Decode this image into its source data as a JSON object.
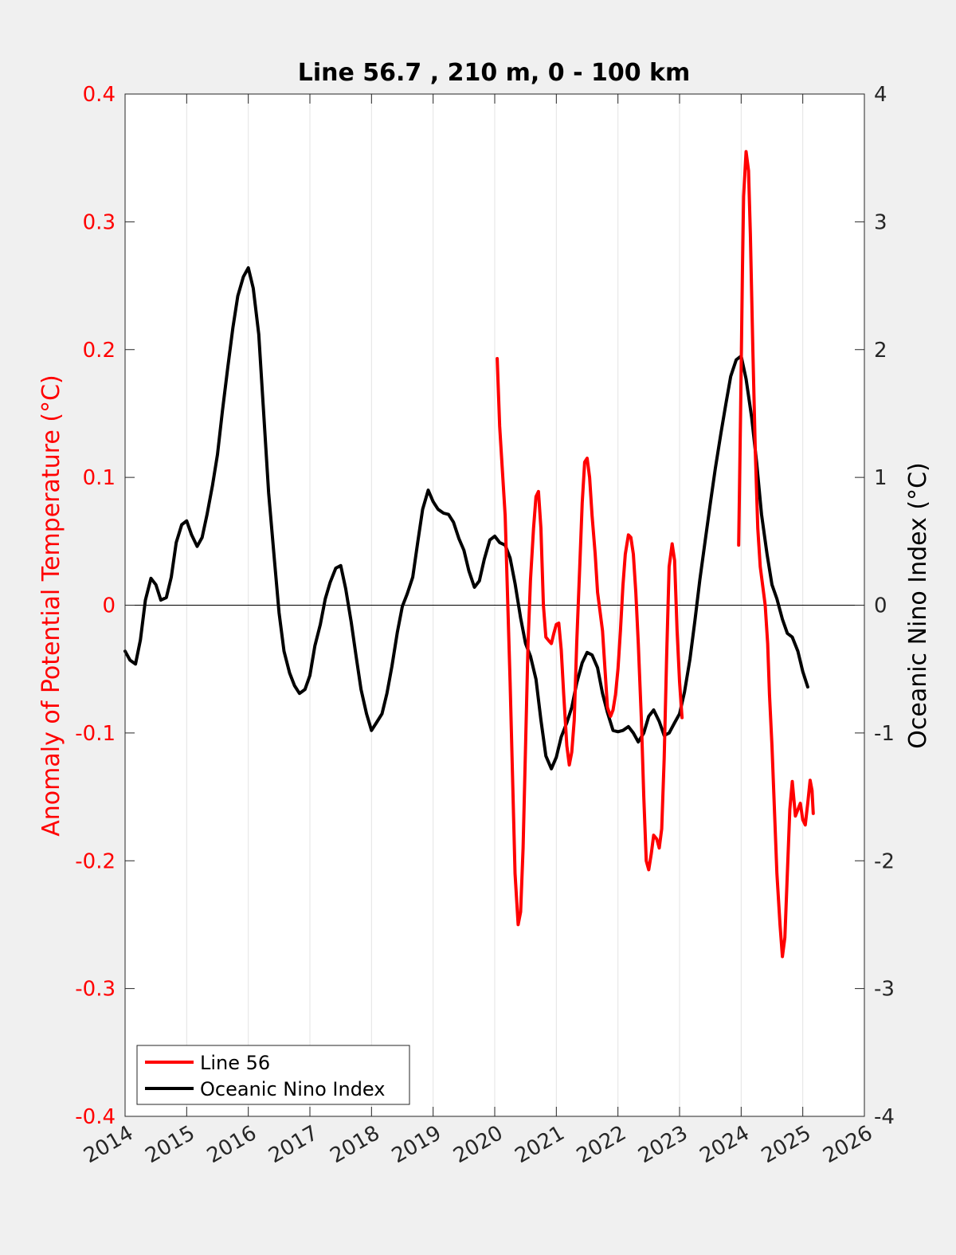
{
  "chart_data": {
    "type": "line",
    "title": "Line 56.7 , 210 m, 0 - 100 km",
    "xlabel": "",
    "ylabel_left": "Anomaly of Potential Temperature (°C)",
    "ylabel_right": "Oceanic Nino Index (°C)",
    "xlim": [
      2014,
      2026
    ],
    "ylim_left": [
      -0.4,
      0.4
    ],
    "ylim_right": [
      -4,
      4
    ],
    "x_ticks": [
      "2014",
      "2015",
      "2016",
      "2017",
      "2018",
      "2019",
      "2020",
      "2021",
      "2022",
      "2023",
      "2024",
      "2025",
      "2026"
    ],
    "y_left_ticks": [
      "-0.4",
      "-0.3",
      "-0.2",
      "-0.1",
      "0",
      "0.1",
      "0.2",
      "0.3",
      "0.4"
    ],
    "y_right_ticks": [
      "-4",
      "-3",
      "-2",
      "-1",
      "0",
      "1",
      "2",
      "3",
      "4"
    ],
    "grid": "vertical",
    "zero_line": true,
    "legend": {
      "position": "bottom-left",
      "entries": [
        "Line 56",
        "Oceanic Nino Index"
      ]
    },
    "colors": {
      "left_axis": "#ff0000",
      "line56": "#ff0000",
      "oni": "#000000"
    },
    "series": [
      {
        "name": "Line 56",
        "axis": "left",
        "segments": [
          [
            [
              2020.04,
              0.193
            ],
            [
              2020.08,
              0.14
            ],
            [
              2020.17,
              0.07
            ],
            [
              2020.25,
              -0.06
            ],
            [
              2020.33,
              -0.21
            ],
            [
              2020.38,
              -0.25
            ],
            [
              2020.42,
              -0.24
            ],
            [
              2020.46,
              -0.19
            ],
            [
              2020.5,
              -0.11
            ],
            [
              2020.54,
              -0.03
            ],
            [
              2020.58,
              0.02
            ],
            [
              2020.63,
              0.06
            ],
            [
              2020.67,
              0.085
            ],
            [
              2020.71,
              0.089
            ],
            [
              2020.75,
              0.06
            ],
            [
              2020.79,
              0.0
            ],
            [
              2020.83,
              -0.025
            ],
            [
              2020.88,
              -0.028
            ],
            [
              2020.92,
              -0.03
            ],
            [
              2020.96,
              -0.022
            ],
            [
              2021.0,
              -0.015
            ],
            [
              2021.04,
              -0.014
            ],
            [
              2021.08,
              -0.035
            ],
            [
              2021.12,
              -0.07
            ],
            [
              2021.17,
              -0.11
            ],
            [
              2021.21,
              -0.125
            ],
            [
              2021.25,
              -0.115
            ],
            [
              2021.29,
              -0.09
            ],
            [
              2021.33,
              -0.03
            ],
            [
              2021.38,
              0.03
            ],
            [
              2021.42,
              0.08
            ],
            [
              2021.46,
              0.112
            ],
            [
              2021.5,
              0.115
            ],
            [
              2021.54,
              0.1
            ],
            [
              2021.58,
              0.07
            ],
            [
              2021.63,
              0.04
            ],
            [
              2021.67,
              0.01
            ],
            [
              2021.71,
              -0.005
            ],
            [
              2021.75,
              -0.02
            ],
            [
              2021.79,
              -0.05
            ],
            [
              2021.83,
              -0.08
            ],
            [
              2021.88,
              -0.087
            ],
            [
              2021.92,
              -0.082
            ],
            [
              2021.96,
              -0.07
            ],
            [
              2022.0,
              -0.05
            ],
            [
              2022.04,
              -0.02
            ],
            [
              2022.08,
              0.015
            ],
            [
              2022.12,
              0.04
            ],
            [
              2022.17,
              0.055
            ],
            [
              2022.21,
              0.053
            ],
            [
              2022.25,
              0.04
            ],
            [
              2022.29,
              0.01
            ],
            [
              2022.33,
              -0.03
            ],
            [
              2022.38,
              -0.09
            ],
            [
              2022.42,
              -0.15
            ],
            [
              2022.46,
              -0.2
            ],
            [
              2022.5,
              -0.207
            ],
            [
              2022.54,
              -0.195
            ],
            [
              2022.58,
              -0.18
            ],
            [
              2022.63,
              -0.183
            ],
            [
              2022.67,
              -0.19
            ],
            [
              2022.71,
              -0.175
            ],
            [
              2022.75,
              -0.12
            ],
            [
              2022.79,
              -0.04
            ],
            [
              2022.83,
              0.03
            ],
            [
              2022.88,
              0.048
            ],
            [
              2022.92,
              0.035
            ],
            [
              2022.96,
              -0.02
            ],
            [
              2023.0,
              -0.06
            ],
            [
              2023.04,
              -0.088
            ]
          ],
          [
            [
              2023.96,
              0.047
            ],
            [
              2023.99,
              0.15
            ],
            [
              2024.02,
              0.26
            ],
            [
              2024.04,
              0.32
            ],
            [
              2024.08,
              0.355
            ],
            [
              2024.12,
              0.34
            ],
            [
              2024.15,
              0.29
            ],
            [
              2024.19,
              0.2
            ],
            [
              2024.23,
              0.12
            ],
            [
              2024.27,
              0.06
            ],
            [
              2024.31,
              0.03
            ],
            [
              2024.35,
              0.015
            ],
            [
              2024.39,
              0.0
            ],
            [
              2024.43,
              -0.03
            ],
            [
              2024.46,
              -0.07
            ],
            [
              2024.5,
              -0.11
            ],
            [
              2024.54,
              -0.16
            ],
            [
              2024.58,
              -0.21
            ],
            [
              2024.63,
              -0.25
            ],
            [
              2024.67,
              -0.275
            ],
            [
              2024.71,
              -0.26
            ],
            [
              2024.75,
              -0.21
            ],
            [
              2024.79,
              -0.16
            ],
            [
              2024.83,
              -0.138
            ],
            [
              2024.88,
              -0.165
            ],
            [
              2024.92,
              -0.16
            ],
            [
              2024.96,
              -0.155
            ],
            [
              2025.0,
              -0.168
            ],
            [
              2025.04,
              -0.172
            ],
            [
              2025.08,
              -0.155
            ],
            [
              2025.12,
              -0.137
            ],
            [
              2025.15,
              -0.145
            ],
            [
              2025.17,
              -0.163
            ]
          ]
        ]
      },
      {
        "name": "Oceanic Nino Index",
        "axis": "right",
        "segments": [
          [
            [
              2014.0,
              -0.36
            ],
            [
              2014.08,
              -0.43
            ],
            [
              2014.17,
              -0.46
            ],
            [
              2014.25,
              -0.27
            ],
            [
              2014.33,
              0.04
            ],
            [
              2014.42,
              0.21
            ],
            [
              2014.5,
              0.16
            ],
            [
              2014.58,
              0.04
            ],
            [
              2014.67,
              0.06
            ],
            [
              2014.75,
              0.22
            ],
            [
              2014.83,
              0.49
            ],
            [
              2014.92,
              0.63
            ],
            [
              2015.0,
              0.66
            ],
            [
              2015.08,
              0.55
            ],
            [
              2015.17,
              0.46
            ],
            [
              2015.25,
              0.53
            ],
            [
              2015.33,
              0.71
            ],
            [
              2015.42,
              0.94
            ],
            [
              2015.5,
              1.18
            ],
            [
              2015.58,
              1.52
            ],
            [
              2015.67,
              1.87
            ],
            [
              2015.75,
              2.17
            ],
            [
              2015.83,
              2.42
            ],
            [
              2015.92,
              2.57
            ],
            [
              2016.0,
              2.64
            ],
            [
              2016.08,
              2.48
            ],
            [
              2016.17,
              2.12
            ],
            [
              2016.25,
              1.5
            ],
            [
              2016.33,
              0.88
            ],
            [
              2016.42,
              0.38
            ],
            [
              2016.5,
              -0.06
            ],
            [
              2016.58,
              -0.36
            ],
            [
              2016.67,
              -0.53
            ],
            [
              2016.75,
              -0.63
            ],
            [
              2016.83,
              -0.69
            ],
            [
              2016.92,
              -0.66
            ],
            [
              2017.0,
              -0.55
            ],
            [
              2017.08,
              -0.32
            ],
            [
              2017.17,
              -0.15
            ],
            [
              2017.25,
              0.05
            ],
            [
              2017.33,
              0.18
            ],
            [
              2017.42,
              0.29
            ],
            [
              2017.5,
              0.31
            ],
            [
              2017.58,
              0.13
            ],
            [
              2017.67,
              -0.13
            ],
            [
              2017.75,
              -0.4
            ],
            [
              2017.83,
              -0.66
            ],
            [
              2017.92,
              -0.85
            ],
            [
              2018.0,
              -0.98
            ],
            [
              2018.08,
              -0.92
            ],
            [
              2018.17,
              -0.85
            ],
            [
              2018.25,
              -0.69
            ],
            [
              2018.33,
              -0.48
            ],
            [
              2018.42,
              -0.21
            ],
            [
              2018.5,
              -0.01
            ],
            [
              2018.58,
              0.09
            ],
            [
              2018.67,
              0.22
            ],
            [
              2018.75,
              0.49
            ],
            [
              2018.83,
              0.75
            ],
            [
              2018.92,
              0.9
            ],
            [
              2019.0,
              0.81
            ],
            [
              2019.08,
              0.75
            ],
            [
              2019.17,
              0.72
            ],
            [
              2019.25,
              0.71
            ],
            [
              2019.33,
              0.65
            ],
            [
              2019.42,
              0.52
            ],
            [
              2019.5,
              0.43
            ],
            [
              2019.58,
              0.27
            ],
            [
              2019.67,
              0.14
            ],
            [
              2019.75,
              0.19
            ],
            [
              2019.83,
              0.36
            ],
            [
              2019.92,
              0.51
            ],
            [
              2020.0,
              0.54
            ],
            [
              2020.08,
              0.49
            ],
            [
              2020.17,
              0.47
            ],
            [
              2020.25,
              0.37
            ],
            [
              2020.33,
              0.17
            ],
            [
              2020.42,
              -0.1
            ],
            [
              2020.5,
              -0.3
            ],
            [
              2020.58,
              -0.4
            ],
            [
              2020.67,
              -0.58
            ],
            [
              2020.75,
              -0.9
            ],
            [
              2020.83,
              -1.18
            ],
            [
              2020.92,
              -1.28
            ],
            [
              2021.0,
              -1.19
            ],
            [
              2021.08,
              -1.03
            ],
            [
              2021.17,
              -0.92
            ],
            [
              2021.25,
              -0.8
            ],
            [
              2021.33,
              -0.61
            ],
            [
              2021.42,
              -0.45
            ],
            [
              2021.5,
              -0.37
            ],
            [
              2021.58,
              -0.39
            ],
            [
              2021.67,
              -0.49
            ],
            [
              2021.75,
              -0.69
            ],
            [
              2021.83,
              -0.84
            ],
            [
              2021.92,
              -0.98
            ],
            [
              2022.0,
              -0.99
            ],
            [
              2022.08,
              -0.98
            ],
            [
              2022.17,
              -0.95
            ],
            [
              2022.25,
              -1.0
            ],
            [
              2022.33,
              -1.07
            ],
            [
              2022.42,
              -1.0
            ],
            [
              2022.5,
              -0.87
            ],
            [
              2022.58,
              -0.82
            ],
            [
              2022.67,
              -0.91
            ],
            [
              2022.75,
              -1.02
            ],
            [
              2022.83,
              -1.0
            ],
            [
              2022.92,
              -0.92
            ],
            [
              2023.0,
              -0.85
            ],
            [
              2023.08,
              -0.68
            ],
            [
              2023.17,
              -0.42
            ],
            [
              2023.25,
              -0.12
            ],
            [
              2023.33,
              0.2
            ],
            [
              2023.42,
              0.52
            ],
            [
              2023.5,
              0.8
            ],
            [
              2023.58,
              1.07
            ],
            [
              2023.67,
              1.34
            ],
            [
              2023.75,
              1.57
            ],
            [
              2023.83,
              1.79
            ],
            [
              2023.92,
              1.92
            ],
            [
              2024.0,
              1.95
            ],
            [
              2024.08,
              1.77
            ],
            [
              2024.17,
              1.47
            ],
            [
              2024.25,
              1.12
            ],
            [
              2024.33,
              0.71
            ],
            [
              2024.42,
              0.4
            ],
            [
              2024.5,
              0.16
            ],
            [
              2024.58,
              0.05
            ],
            [
              2024.67,
              -0.11
            ],
            [
              2024.75,
              -0.22
            ],
            [
              2024.83,
              -0.25
            ],
            [
              2024.92,
              -0.36
            ],
            [
              2025.0,
              -0.52
            ],
            [
              2025.08,
              -0.64
            ]
          ]
        ]
      }
    ]
  }
}
